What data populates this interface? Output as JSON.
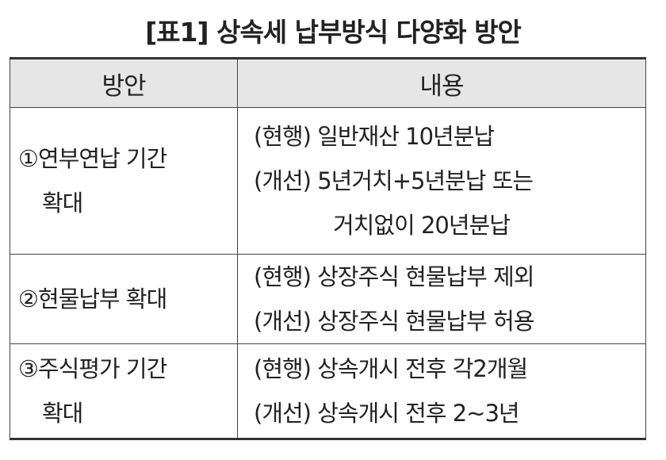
{
  "title": "[표1] 상속세 납부방식 다양화 방안",
  "headers": [
    "방안",
    "내용"
  ],
  "rows": [
    {
      "plan": [
        "①연부연납 기간",
        "확대"
      ],
      "lines": [
        "(현행) 일반재산 10년분납",
        "(개선) 5년거치+5년분납 또는",
        "거치없이 20년분납"
      ]
    },
    {
      "plan": [
        "②현물납부 확대"
      ],
      "lines": [
        "(현행) 상장주식 현물납부 제외",
        "(개선) 상장주식 현물납부 허용"
      ]
    },
    {
      "plan": [
        "③주식평가 기간",
        "확대"
      ],
      "lines": [
        "(현행) 상속개시 전후 각2개월",
        "(개선) 상속개시 전후 2~3년"
      ]
    }
  ],
  "colors": {
    "header_bg": "#e6e6e6",
    "spellcheck_underline": "#e8a050"
  }
}
